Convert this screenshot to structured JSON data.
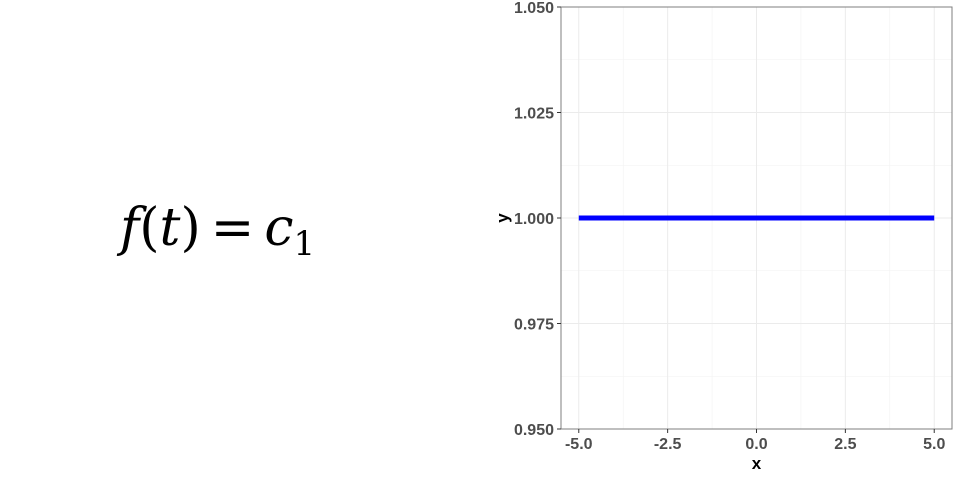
{
  "formula": {
    "fn": "f",
    "open_paren": "(",
    "arg": "t",
    "close_paren": ")",
    "equals": "=",
    "const_base": "c",
    "const_sub": "1"
  },
  "chart_data": {
    "type": "line",
    "title": "",
    "xlabel": "x",
    "ylabel": "y",
    "xlim": [
      -5.5,
      5.5
    ],
    "ylim": [
      0.95,
      1.05
    ],
    "x_ticks": [
      -5.0,
      -2.5,
      0.0,
      2.5,
      5.0
    ],
    "x_tick_labels": [
      "-5.0",
      "-2.5",
      "0.0",
      "2.5",
      "5.0"
    ],
    "y_ticks": [
      0.95,
      0.975,
      1.0,
      1.025,
      1.05
    ],
    "y_tick_labels": [
      "0.950",
      "0.975",
      "1.000",
      "1.025",
      "1.050"
    ],
    "grid": true,
    "series": [
      {
        "color": "#0000ff",
        "x": [
          -5,
          5
        ],
        "y": [
          1,
          1
        ]
      }
    ]
  }
}
